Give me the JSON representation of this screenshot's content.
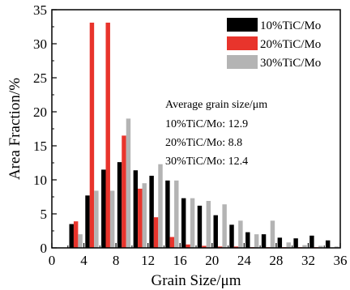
{
  "chart_data": {
    "type": "bar",
    "xlabel": "Grain Size/μm",
    "ylabel": "Area Fraction/%",
    "xlim": [
      0,
      36
    ],
    "ylim": [
      0,
      35
    ],
    "xticks": [
      "0",
      "4",
      "8",
      "12",
      "16",
      "20",
      "24",
      "28",
      "32",
      "36"
    ],
    "yticks": [
      "0",
      "5",
      "10",
      "15",
      "20",
      "25",
      "30",
      "35"
    ],
    "categories": [
      3,
      5,
      7,
      9,
      11,
      13,
      15,
      17,
      19,
      21,
      23,
      25,
      27,
      29,
      31,
      33,
      35
    ],
    "series": [
      {
        "name": "10%TiC/Mo",
        "color": "#000000",
        "values": [
          3.5,
          7.7,
          11.5,
          12.6,
          11.4,
          10.6,
          9.9,
          7.3,
          6.2,
          4.8,
          3.4,
          2.3,
          2.0,
          1.5,
          1.4,
          1.8,
          1.1
        ]
      },
      {
        "name": "20%TiC/Mo",
        "color": "#e8342c",
        "values": [
          3.9,
          33.1,
          33.1,
          16.5,
          8.7,
          4.5,
          1.6,
          0.5,
          0.3,
          0.2,
          0.2,
          0.1,
          0.1,
          0.1,
          0.1,
          0.1,
          0.0
        ]
      },
      {
        "name": "30%TiC/Mo",
        "color": "#b4b4b4",
        "values": [
          2.0,
          8.4,
          8.4,
          19.0,
          9.5,
          12.3,
          9.9,
          7.3,
          6.9,
          6.4,
          4.0,
          2.0,
          4.0,
          0.8,
          0.4,
          0.3,
          0.2
        ]
      }
    ],
    "legend": "top-right",
    "annotation": {
      "title": "Average grain size/μm",
      "lines": [
        "10%TiC/Mo: 12.9",
        "20%TiC/Mo: 8.8",
        "30%TiC/Mo: 12.4"
      ]
    }
  }
}
